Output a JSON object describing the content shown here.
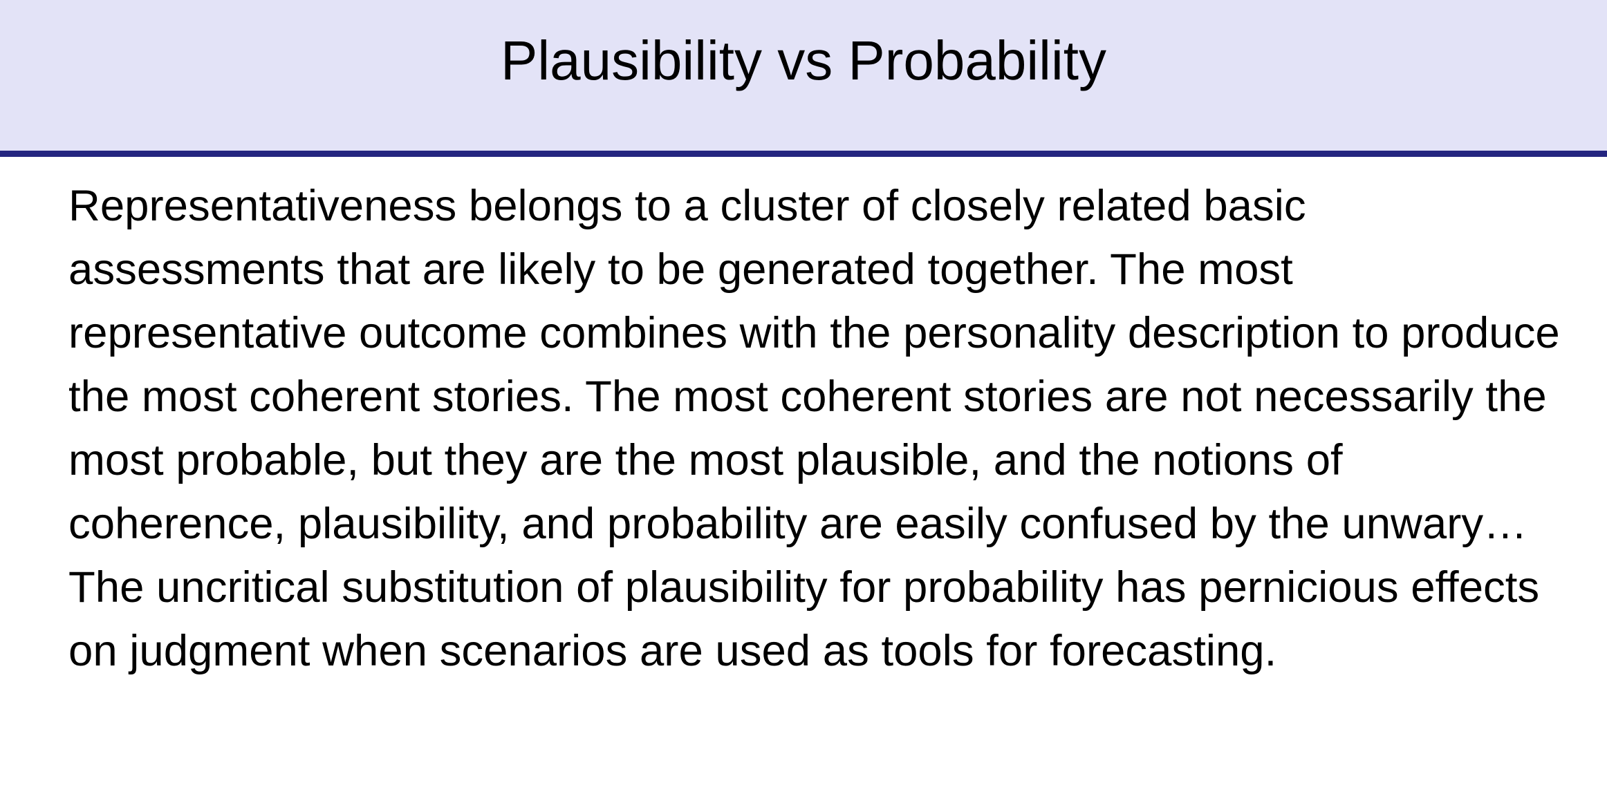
{
  "slide": {
    "title": "Plausibility vs Probability",
    "body": "Representativeness belongs to a cluster of closely related basic assessments that are likely to be generated together. The most representative outcome combines with the personality description to produce the most coherent stories. The most coherent stories are not necessarily the most probable, but they are the most plausible, and the notions of coherence, plausibility, and probability are easily confused by the unwary… The uncritical substitution of plausibility for probability has pernicious effects on judgment when scenarios are used as tools for forecasting."
  },
  "colors": {
    "title_band": "#e3e3f7",
    "title_rule": "#242580",
    "text": "#000000",
    "background": "#ffffff"
  }
}
